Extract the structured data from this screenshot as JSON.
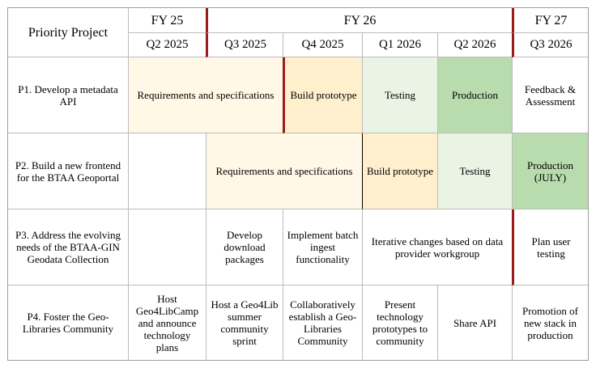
{
  "header": {
    "priority_project": "Priority Project",
    "fiscal_years": [
      "FY 25",
      "FY 26",
      "FY 27"
    ],
    "quarters": [
      "Q2 2025",
      "Q3 2025",
      "Q4 2025",
      "Q1 2026",
      "Q2 2026",
      "Q3 2026"
    ]
  },
  "projects": [
    {
      "label": "P1. Develop a metadata API",
      "cells": [
        "Requirements and specifications",
        "Build prototype",
        "Testing",
        "Production",
        "Feedback & Assessment"
      ]
    },
    {
      "label": "P2. Build a new frontend for the BTAA Geoportal",
      "cells": [
        "",
        "Requirements and specifications",
        "Build prototype",
        "Testing",
        "Production (JULY)"
      ]
    },
    {
      "label": "P3. Address the evolving needs of the BTAA-GIN Geodata Collection",
      "cells": [
        "",
        "Develop download packages",
        "Implement batch ingest functionality",
        "Iterative changes based on data provider workgroup",
        "Plan user testing"
      ]
    },
    {
      "label": "P4. Foster the Geo-Libraries Community",
      "cells": [
        "Host Geo4LibCamp and announce technology plans",
        "Host a Geo4Lib summer community sprint",
        "Collaboratively establish a Geo-Libraries Community",
        "Present technology prototypes to community",
        "Share API",
        "Promotion of new stack in production"
      ]
    }
  ],
  "colors": {
    "requirements": "#fff8e6",
    "build": "#ffefcc",
    "testing": "#eaf4e5",
    "production": "#b8dcae",
    "milestone_line": "#9b1c1c"
  }
}
